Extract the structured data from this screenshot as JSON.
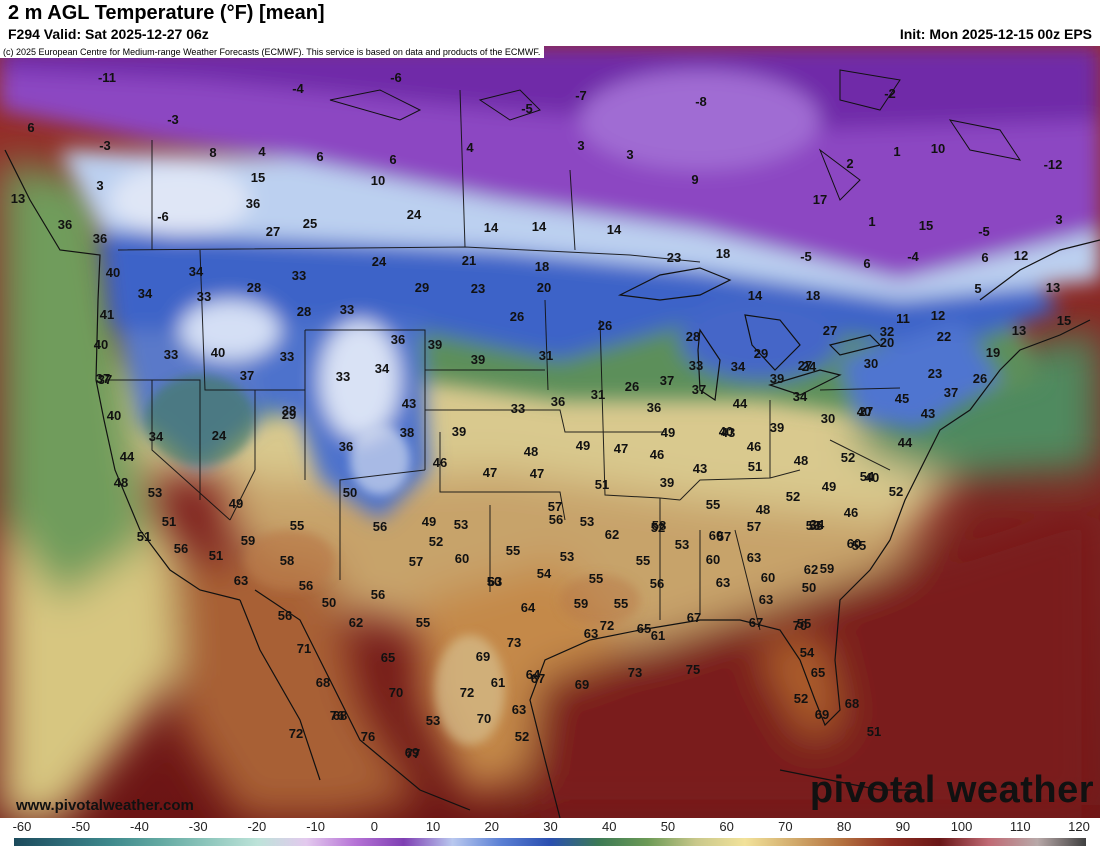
{
  "header": {
    "title": "2 m AGL Temperature (°F) [mean]",
    "valid": "F294 Valid: Sat 2025-12-27 06z",
    "init": "Init: Mon 2025-12-15 00z EPS"
  },
  "copyright": "(c) 2025 European Centre for Medium-range Weather Forecasts (ECMWF). This service is based on data and products of the ECMWF.",
  "watermark_site": "www.pivotalweather.com",
  "watermark_logo": "pivotal weather",
  "colorbar": {
    "ticks": [
      "-60",
      "-50",
      "-40",
      "-30",
      "-20",
      "-10",
      "0",
      "10",
      "20",
      "30",
      "40",
      "50",
      "60",
      "70",
      "80",
      "90",
      "100",
      "110",
      "120"
    ],
    "colors": [
      "#1c4b5c",
      "#2d6a77",
      "#3f8a8d",
      "#63a9a2",
      "#8fc7bd",
      "#bde3d9",
      "#e3c9ee",
      "#b673d6",
      "#7f3fb3",
      "#b9c8ef",
      "#5a7fd4",
      "#2a4fb0",
      "#3c7a55",
      "#6c9a56",
      "#c9c88b",
      "#f2e29a",
      "#d2ab6c",
      "#b4713f",
      "#8e2e22",
      "#6a1717",
      "#c06a74",
      "#b8a8a8",
      "#404040"
    ]
  },
  "map": {
    "temperature_labels": [
      "-11",
      "-4",
      "-6",
      "-3",
      "-5",
      "-7",
      "-8",
      "-2",
      "6",
      "-3",
      "8",
      "4",
      "6",
      "6",
      "4",
      "3",
      "3",
      "1",
      "10",
      "-12",
      "3",
      "15",
      "10",
      "9",
      "2",
      "13",
      "36",
      "17",
      "-6",
      "27",
      "25",
      "24",
      "14",
      "14",
      "14",
      "15",
      "-5",
      "3",
      "36",
      "36",
      "18",
      "1",
      "-5",
      "-4",
      "12",
      "21",
      "18",
      "6",
      "6",
      "40",
      "34",
      "33",
      "24",
      "28",
      "23",
      "20",
      "23",
      "14",
      "18",
      "5",
      "34",
      "33",
      "29",
      "13",
      "41",
      "28",
      "26",
      "15",
      "33",
      "26",
      "27",
      "32",
      "11",
      "12",
      "40",
      "36",
      "39",
      "28",
      "22",
      "13",
      "33",
      "40",
      "33",
      "34",
      "39",
      "31",
      "33",
      "20",
      "19",
      "37",
      "37",
      "24",
      "33",
      "29",
      "27",
      "30",
      "23",
      "26",
      "37",
      "38",
      "33",
      "36",
      "31",
      "26",
      "37",
      "37",
      "34",
      "39",
      "34",
      "45",
      "37",
      "40",
      "43",
      "39",
      "39",
      "36",
      "44",
      "30",
      "27",
      "24",
      "34",
      "29",
      "36",
      "40",
      "44",
      "43",
      "40",
      "49",
      "43",
      "38",
      "44",
      "46",
      "47",
      "46",
      "48",
      "48",
      "49",
      "47",
      "46",
      "48",
      "47",
      "51",
      "52",
      "40",
      "43",
      "51",
      "39",
      "52",
      "49",
      "49",
      "53",
      "50",
      "52",
      "49",
      "54",
      "48",
      "34",
      "55",
      "51",
      "46",
      "55",
      "56",
      "53",
      "51",
      "56",
      "53",
      "53",
      "55",
      "52",
      "58",
      "57",
      "60",
      "60",
      "57",
      "56",
      "51",
      "59",
      "58",
      "57",
      "53",
      "56",
      "52",
      "60",
      "57",
      "55",
      "62",
      "55",
      "55",
      "53",
      "54",
      "60",
      "63",
      "55",
      "59",
      "50",
      "63",
      "50",
      "55",
      "63",
      "62",
      "60",
      "56",
      "55",
      "56",
      "63",
      "65",
      "63",
      "59",
      "62",
      "56",
      "50",
      "64",
      "63",
      "61",
      "67",
      "55",
      "67",
      "73",
      "72",
      "70",
      "69",
      "71",
      "67",
      "54",
      "65",
      "68",
      "75",
      "61",
      "68",
      "65",
      "70",
      "72",
      "63",
      "69",
      "52",
      "64",
      "69",
      "73",
      "68",
      "69",
      "70",
      "76",
      "72",
      "53",
      "76",
      "77",
      "52",
      "51"
    ]
  }
}
